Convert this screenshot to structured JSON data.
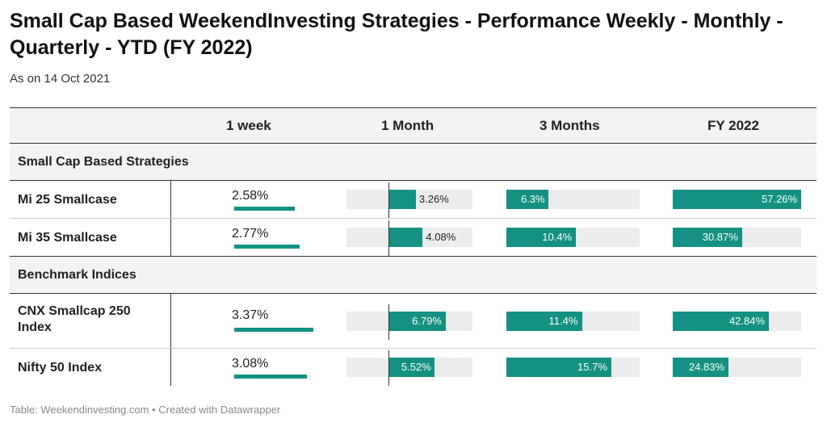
{
  "title": "Small Cap Based WeekendInvesting Strategies - Performance Weekly - Monthly - Quarterly - YTD (FY 2022)",
  "subtitle": "As on 14 Oct 2021",
  "footer": "Table: Weekendinvesting.com • Created with Datawrapper",
  "columns": [
    "1 week",
    "1 Month",
    "3 Months",
    "FY 2022"
  ],
  "groups": [
    {
      "label": "Small Cap Based Strategies"
    },
    {
      "label": "Benchmark Indices"
    }
  ],
  "colors": {
    "bar": "#149182",
    "track": "#ececec",
    "header_bg": "#f3f3f3"
  },
  "chart_data": {
    "type": "table",
    "title": "Small Cap Based WeekendInvesting Strategies - Performance Weekly - Monthly - Quarterly - YTD (FY 2022)",
    "columns": [
      "1 week",
      "1 Month",
      "3 Months",
      "FY 2022"
    ],
    "groups": [
      "Small Cap Based Strategies",
      "Benchmark Indices"
    ],
    "rows": [
      {
        "group": 0,
        "name": "Mi 25 Smallcase",
        "values": [
          2.58,
          3.26,
          6.3,
          57.26
        ],
        "labels": [
          "2.58%",
          "3.26%",
          "6.3%",
          "57.26%"
        ]
      },
      {
        "group": 0,
        "name": "Mi 35 Smallcase",
        "values": [
          2.77,
          4.08,
          10.4,
          30.87
        ],
        "labels": [
          "2.77%",
          "4.08%",
          "10.4%",
          "30.87%"
        ]
      },
      {
        "group": 1,
        "name": "CNX Smallcap 250 Index",
        "values": [
          3.37,
          6.79,
          11.4,
          42.84
        ],
        "labels": [
          "3.37%",
          "6.79%",
          "11.4%",
          "42.84%"
        ]
      },
      {
        "group": 1,
        "name": "Nifty 50 Index",
        "values": [
          3.08,
          5.52,
          15.7,
          24.83
        ],
        "labels": [
          "3.08%",
          "5.52%",
          "15.7%",
          "24.83%"
        ]
      }
    ],
    "column_ranges": [
      [
        0,
        3.37
      ],
      [
        -5,
        10
      ],
      [
        0,
        20
      ],
      [
        0,
        57.26
      ]
    ]
  }
}
